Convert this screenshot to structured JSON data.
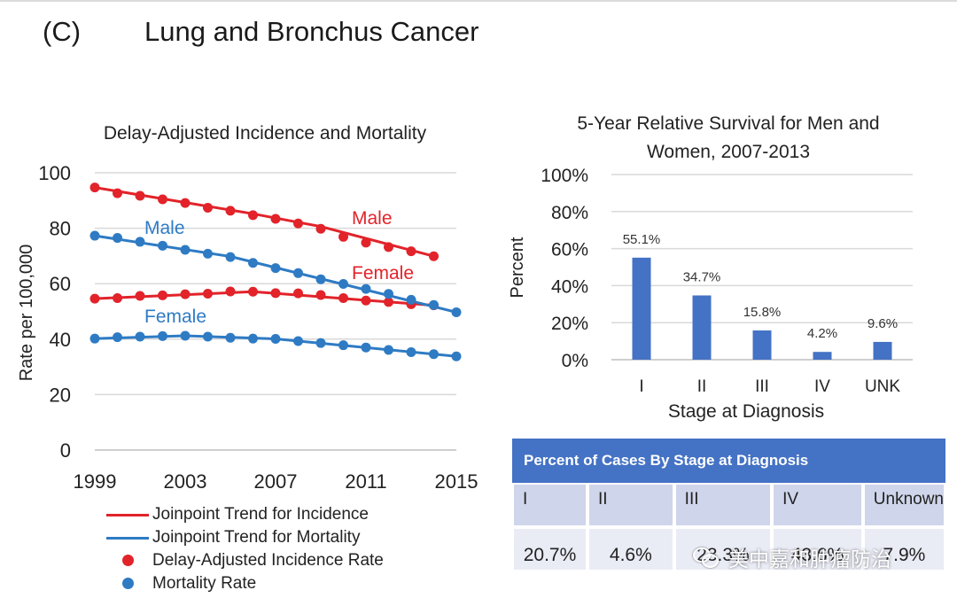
{
  "header": {
    "panel_label": "(C)",
    "title": "Lung and Bronchus Cancer"
  },
  "colors": {
    "incidence": "#e2232a",
    "mortality": "#2e7bc4",
    "bar": "#4472c4",
    "grid": "#d9d9d9"
  },
  "chart_data": [
    {
      "type": "line",
      "title": "Delay-Adjusted Incidence and Mortality",
      "xlabel": "",
      "ylabel": "Rate per 100,000",
      "xlim": [
        1999,
        2015
      ],
      "ylim": [
        0,
        100
      ],
      "xticks": [
        "1999",
        "2003",
        "2007",
        "2011",
        "2015"
      ],
      "yticks": [
        "0",
        "20",
        "40",
        "60",
        "80",
        "100"
      ],
      "grid": true,
      "series": [
        {
          "name": "Male",
          "kind": "incidence",
          "points": [
            [
              1999,
              94.7
            ],
            [
              2000,
              92.6
            ],
            [
              2001,
              91.7
            ],
            [
              2002,
              90.4
            ],
            [
              2003,
              89.1
            ],
            [
              2004,
              87.4
            ],
            [
              2005,
              86.3
            ],
            [
              2006,
              84.7
            ],
            [
              2007,
              83.4
            ],
            [
              2008,
              81.7
            ],
            [
              2009,
              79.8
            ],
            [
              2010,
              76.9
            ],
            [
              2011,
              74.8
            ],
            [
              2012,
              73.2
            ],
            [
              2013,
              71.7
            ],
            [
              2014,
              69.9
            ]
          ],
          "trend": [
            [
              1999,
              94.7
            ],
            [
              2006,
              85.2
            ],
            [
              2009,
              80.6
            ],
            [
              2014,
              69.9
            ]
          ]
        },
        {
          "name": "Female",
          "kind": "incidence",
          "points": [
            [
              1999,
              54.6
            ],
            [
              2000,
              54.8
            ],
            [
              2001,
              55.6
            ],
            [
              2002,
              55.8
            ],
            [
              2003,
              56.2
            ],
            [
              2004,
              56.4
            ],
            [
              2005,
              57.2
            ],
            [
              2006,
              57.1
            ],
            [
              2007,
              56.6
            ],
            [
              2008,
              56.5
            ],
            [
              2009,
              55.9
            ],
            [
              2010,
              54.8
            ],
            [
              2011,
              53.9
            ],
            [
              2012,
              53.4
            ],
            [
              2013,
              52.6
            ],
            [
              2014,
              52.2
            ]
          ],
          "trend": [
            [
              1999,
              54.6
            ],
            [
              2006,
              57.1
            ],
            [
              2014,
              52.2
            ]
          ]
        },
        {
          "name": "Male",
          "kind": "mortality",
          "points": [
            [
              1999,
              77.3
            ],
            [
              2000,
              76.5
            ],
            [
              2001,
              75.1
            ],
            [
              2002,
              73.7
            ],
            [
              2003,
              72.2
            ],
            [
              2004,
              70.8
            ],
            [
              2005,
              69.6
            ],
            [
              2006,
              67.5
            ],
            [
              2007,
              65.6
            ],
            [
              2008,
              63.8
            ],
            [
              2009,
              61.6
            ],
            [
              2010,
              59.9
            ],
            [
              2011,
              58.1
            ],
            [
              2012,
              56.3
            ],
            [
              2013,
              54.2
            ],
            [
              2014,
              52.3
            ],
            [
              2015,
              49.7
            ]
          ],
          "trend": [
            [
              1999,
              77.3
            ],
            [
              2005,
              69.8
            ],
            [
              2015,
              49.7
            ]
          ]
        },
        {
          "name": "Female",
          "kind": "mortality",
          "points": [
            [
              1999,
              40.2
            ],
            [
              2000,
              40.7
            ],
            [
              2001,
              40.9
            ],
            [
              2002,
              41.1
            ],
            [
              2003,
              41.2
            ],
            [
              2004,
              40.9
            ],
            [
              2005,
              40.5
            ],
            [
              2006,
              40.2
            ],
            [
              2007,
              40.1
            ],
            [
              2008,
              39.3
            ],
            [
              2009,
              38.6
            ],
            [
              2010,
              37.8
            ],
            [
              2011,
              37.0
            ],
            [
              2012,
              36.1
            ],
            [
              2013,
              35.3
            ],
            [
              2014,
              34.6
            ],
            [
              2015,
              33.8
            ]
          ],
          "trend": [
            [
              1999,
              40.2
            ],
            [
              2003,
              41.2
            ],
            [
              2007,
              40.1
            ],
            [
              2015,
              33.8
            ]
          ]
        }
      ],
      "annotations": [
        {
          "text": "Male",
          "series": "incidence-male"
        },
        {
          "text": "Female",
          "series": "incidence-female"
        },
        {
          "text": "Male",
          "series": "mortality-male"
        },
        {
          "text": "Female",
          "series": "mortality-female"
        }
      ],
      "legend": {
        "position": "bottom",
        "items": [
          {
            "label": "Joinpoint Trend for Incidence",
            "marker": "line",
            "kind": "incidence"
          },
          {
            "label": "Joinpoint Trend for Mortality",
            "marker": "line",
            "kind": "mortality"
          },
          {
            "label": "Delay-Adjusted Incidence Rate",
            "marker": "dot",
            "kind": "incidence"
          },
          {
            "label": "Mortality Rate",
            "marker": "dot",
            "kind": "mortality"
          }
        ]
      }
    },
    {
      "type": "bar",
      "title": "5-Year Relative Survival for Men and Women, 2007-2013",
      "title_lines": [
        "5-Year Relative Survival for Men and",
        "Women, 2007-2013"
      ],
      "xlabel": "Stage at Diagnosis",
      "ylabel": "Percent",
      "categories": [
        "I",
        "II",
        "III",
        "IV",
        "UNK"
      ],
      "values": [
        55.1,
        34.7,
        15.8,
        4.2,
        9.6
      ],
      "data_labels": [
        "55.1%",
        "34.7%",
        "15.8%",
        "4.2%",
        "9.6%"
      ],
      "ylim": [
        0,
        100
      ],
      "yticks": [
        "0%",
        "20%",
        "40%",
        "60%",
        "80%",
        "100%"
      ],
      "grid": true
    },
    {
      "type": "table",
      "title": "Percent of Cases By Stage at Diagnosis",
      "columns": [
        "I",
        "II",
        "III",
        "IV",
        "Unknown"
      ],
      "values": [
        "20.7%",
        "4.6%",
        "23.3%",
        "43.6%",
        "7.9%"
      ]
    }
  ],
  "watermark": {
    "text": "美中嘉和肿瘤防治"
  }
}
